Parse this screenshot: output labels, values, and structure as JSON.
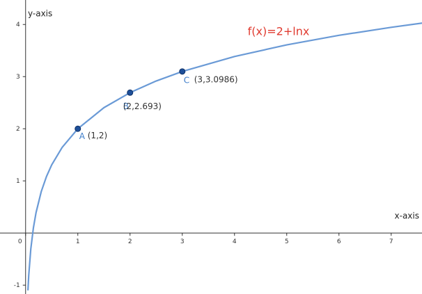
{
  "chart_data": {
    "type": "line",
    "xlabel": "x-axis",
    "ylabel": "y-axis",
    "annotation": "f(x)=2+lnx",
    "xlim": [
      -0.49,
      7.59
    ],
    "ylim": [
      -1.17,
      4.47
    ],
    "xticks": [
      0,
      1,
      2,
      3,
      4,
      5,
      6,
      7
    ],
    "yticks": [
      -1,
      1,
      2,
      3,
      4
    ],
    "grid": false,
    "series": [
      {
        "color": "#6a9ad6",
        "x": [
          0.045,
          0.06,
          0.1,
          0.15,
          0.2,
          0.3,
          0.4,
          0.5,
          0.7,
          1,
          1.5,
          2,
          2.5,
          3,
          4,
          5,
          6,
          7,
          7.6
        ],
        "values": [
          -1.101,
          -0.813,
          -0.303,
          0.103,
          0.391,
          0.796,
          1.084,
          1.307,
          1.643,
          2,
          2.405,
          2.693,
          2.916,
          3.099,
          3.386,
          3.609,
          3.792,
          3.946,
          4.028
        ]
      }
    ],
    "points": [
      {
        "name": "A",
        "x": 1,
        "y": 2,
        "label": "(1,2)"
      },
      {
        "name": "B",
        "x": 2,
        "y": 2.693,
        "label": "(2,2.693)"
      },
      {
        "name": "C",
        "x": 3,
        "y": 3.0986,
        "label": "(3,3.0986)"
      }
    ],
    "point_color": "#1e4f99",
    "point_label_color": "#3d7cc9",
    "annotation_color": "#e03a2f"
  }
}
